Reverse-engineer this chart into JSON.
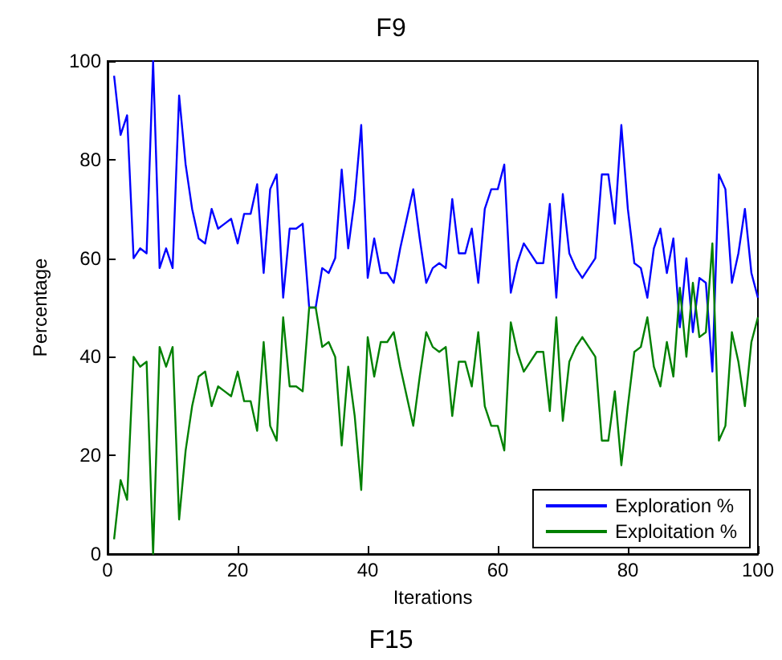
{
  "chart_data": {
    "type": "line",
    "title": "F9",
    "xlabel": "Iterations",
    "ylabel": "Percentage",
    "annotations": [
      "F15"
    ],
    "x": [
      1,
      2,
      3,
      4,
      5,
      6,
      7,
      8,
      9,
      10,
      11,
      12,
      13,
      14,
      15,
      16,
      17,
      18,
      19,
      20,
      21,
      22,
      23,
      24,
      25,
      26,
      27,
      28,
      29,
      30,
      31,
      32,
      33,
      34,
      35,
      36,
      37,
      38,
      39,
      40,
      41,
      42,
      43,
      44,
      45,
      46,
      47,
      48,
      49,
      50,
      51,
      52,
      53,
      54,
      55,
      56,
      57,
      58,
      59,
      60,
      61,
      62,
      63,
      64,
      65,
      66,
      67,
      68,
      69,
      70,
      71,
      72,
      73,
      74,
      75,
      76,
      77,
      78,
      79,
      80,
      81,
      82,
      83,
      84,
      85,
      86,
      87,
      88,
      89,
      90,
      91,
      92,
      93,
      94,
      95,
      96,
      97,
      98,
      99,
      100
    ],
    "series": [
      {
        "name": "Exploration %",
        "color": "#0000ff",
        "values": [
          97,
          85,
          89,
          60,
          62,
          61,
          100,
          58,
          62,
          58,
          93,
          79,
          70,
          64,
          63,
          70,
          66,
          67,
          68,
          63,
          69,
          69,
          75,
          57,
          74,
          77,
          52,
          66,
          66,
          67,
          50,
          50,
          58,
          57,
          60,
          78,
          62,
          72,
          87,
          56,
          64,
          57,
          57,
          55,
          62,
          68,
          74,
          64,
          55,
          58,
          59,
          58,
          72,
          61,
          61,
          66,
          55,
          70,
          74,
          74,
          79,
          53,
          59,
          63,
          61,
          59,
          59,
          71,
          52,
          73,
          61,
          58,
          56,
          58,
          60,
          77,
          77,
          67,
          87,
          70,
          59,
          58,
          52,
          62,
          66,
          57,
          64,
          46,
          60,
          45,
          56,
          55,
          37,
          77,
          74,
          55,
          61,
          70,
          57,
          52
        ]
      },
      {
        "name": "Exploitation %",
        "color": "#008000",
        "values": [
          3,
          15,
          11,
          40,
          38,
          39,
          0,
          42,
          38,
          42,
          7,
          21,
          30,
          36,
          37,
          30,
          34,
          33,
          32,
          37,
          31,
          31,
          25,
          43,
          26,
          23,
          48,
          34,
          34,
          33,
          50,
          50,
          42,
          43,
          40,
          22,
          38,
          28,
          13,
          44,
          36,
          43,
          43,
          45,
          38,
          32,
          26,
          36,
          45,
          42,
          41,
          42,
          28,
          39,
          39,
          34,
          45,
          30,
          26,
          26,
          21,
          47,
          41,
          37,
          39,
          41,
          41,
          29,
          48,
          27,
          39,
          42,
          44,
          42,
          40,
          23,
          23,
          33,
          18,
          30,
          41,
          42,
          48,
          38,
          34,
          43,
          36,
          54,
          40,
          55,
          44,
          45,
          63,
          23,
          26,
          45,
          39,
          30,
          43,
          48
        ]
      }
    ],
    "xlim": [
      0,
      100
    ],
    "xticks": [
      0,
      20,
      40,
      60,
      80,
      100
    ],
    "ylim": [
      0,
      100
    ],
    "yticks": [
      0,
      20,
      40,
      60,
      80,
      100
    ],
    "grid": false,
    "legend": "bottom right",
    "line_style": "solid",
    "marker": "none"
  }
}
